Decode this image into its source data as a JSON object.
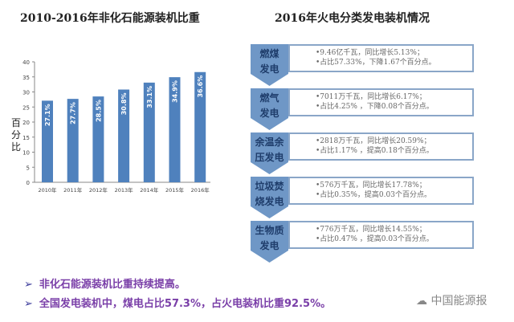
{
  "left_title": "2010-2016年非化石能源装机比重",
  "right_title": "2016年火电分类发电装机情况",
  "chart_data": {
    "type": "bar",
    "title": "2010-2016年非化石能源装机比重",
    "ylabel": "百分比",
    "categories": [
      "2010年",
      "2011年",
      "2012年",
      "2013年",
      "2014年",
      "2015年",
      "2016年"
    ],
    "values": [
      27.1,
      27.7,
      28.5,
      30.8,
      33.1,
      34.9,
      36.6
    ],
    "data_labels": [
      "27.1%",
      "27.7%",
      "28.5%",
      "30.8%",
      "33.1%",
      "34.9%",
      "36.6%"
    ],
    "ylim": [
      0,
      40
    ],
    "yticks": [
      0,
      5,
      10,
      15,
      20,
      25,
      30,
      35,
      40
    ],
    "bar_color": "#4f81bd",
    "grid": false
  },
  "categories": [
    {
      "label": "燃煤发电",
      "line1": "•9.46亿千瓦，同比增长5.13%；",
      "line2": "•占比57.33%，下降1.67个百分点。"
    },
    {
      "label": "燃气发电",
      "line1": "•7011万千瓦，同比增长6.17%；",
      "line2": "•占比4.25% ，下降0.08个百分点。"
    },
    {
      "label": "余温余压发电",
      "line1": "•2818万千瓦，同比增长20.59%；",
      "line2": "•占比1.17% ，提高0.18个百分点。"
    },
    {
      "label": "垃圾焚烧发电",
      "line1": "•576万千瓦，同比增长17.78%；",
      "line2": "•占比0.35%，提高0.03个百分点。"
    },
    {
      "label": "生物质发电",
      "line1": "•776万千瓦，同比增长14.55%；",
      "line2": "•占比0.47% ，提高0.03个百分点。"
    }
  ],
  "bullets": [
    "非化石能源装机比重持续提高。",
    "全国发电装机中，煤电占比57.3%，占火电装机比重92.5%。"
  ],
  "bullet_marker": "➢",
  "watermark": "中国能源报",
  "colors": {
    "label_block": "#6f97c6",
    "label_text": "#1f3d6b",
    "bullet": "#7a3fa8"
  }
}
